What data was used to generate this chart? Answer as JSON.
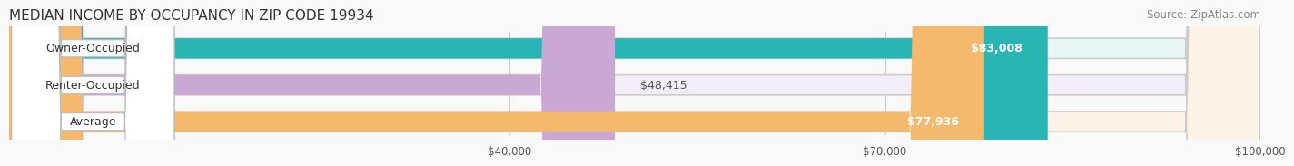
{
  "title": "MEDIAN INCOME BY OCCUPANCY IN ZIP CODE 19934",
  "source": "Source: ZipAtlas.com",
  "categories": [
    "Owner-Occupied",
    "Renter-Occupied",
    "Average"
  ],
  "values": [
    83008,
    48415,
    77936
  ],
  "value_labels": [
    "$83,008",
    "$48,415",
    "$77,936"
  ],
  "bar_colors": [
    "#2ab5b5",
    "#c9a8d4",
    "#f5b96e"
  ],
  "bar_bg_colors": [
    "#e8f6f6",
    "#f3edf7",
    "#fdf3e7"
  ],
  "xmin": 0,
  "xmax": 100000,
  "xticks": [
    40000,
    70000,
    100000
  ],
  "xtick_labels": [
    "$40,000",
    "$70,000",
    "$100,000"
  ],
  "title_fontsize": 11,
  "source_fontsize": 8.5,
  "label_fontsize": 9,
  "value_fontsize": 9,
  "background_color": "#f9f9f9"
}
